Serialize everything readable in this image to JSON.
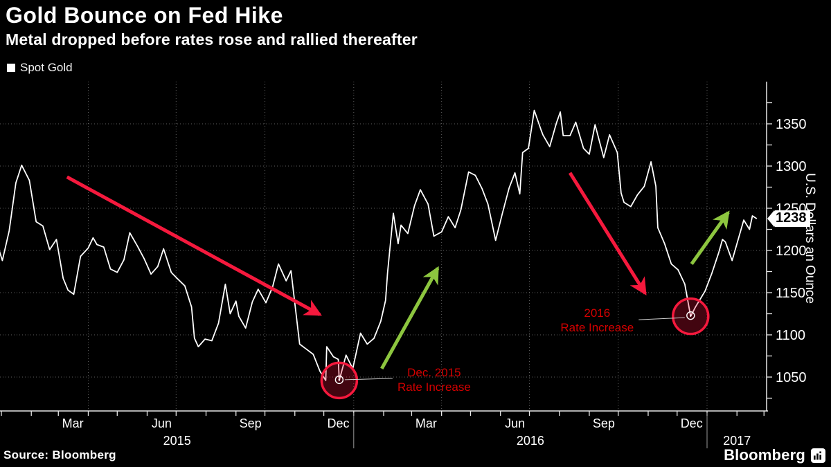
{
  "header": {
    "title": "Gold Bounce on Fed Hike",
    "subtitle": "Metal dropped before rates rose and rallied thereafter"
  },
  "legend": {
    "label": "Spot Gold"
  },
  "footer": {
    "source": "Source: Bloomberg",
    "brand": "Bloomberg"
  },
  "colors": {
    "background": "#000000",
    "line": "#ffffff",
    "grid": "#606060",
    "axis": "#e8e8e8",
    "annotation_red": "#f5193d",
    "annotation_text_red": "#d40000",
    "annotation_green": "#8dc63f",
    "callout": "#cfcfcf"
  },
  "annotations": {
    "events": [
      {
        "lines": [
          "Dec. 2015",
          "Rate Increase"
        ],
        "date": "2015-12-17",
        "value": 1046,
        "side": "right"
      },
      {
        "lines": [
          "2016",
          "Rate Increase"
        ],
        "date": "2016-12-15",
        "value": 1122,
        "side": "left"
      }
    ],
    "arrows": [
      {
        "color": "#f5193d",
        "from": {
          "date": "2015-03-10",
          "value": 1287
        },
        "to": {
          "date": "2015-11-27",
          "value": 1124
        }
      },
      {
        "color": "#8dc63f",
        "from": {
          "date": "2016-01-30",
          "value": 1060
        },
        "to": {
          "date": "2016-03-28",
          "value": 1179
        }
      },
      {
        "color": "#f5193d",
        "from": {
          "date": "2016-08-12",
          "value": 1292
        },
        "to": {
          "date": "2016-10-29",
          "value": 1149
        }
      },
      {
        "color": "#8dc63f",
        "from": {
          "date": "2016-12-16",
          "value": 1184
        },
        "to": {
          "date": "2017-01-23",
          "value": 1245
        }
      }
    ]
  },
  "chart_data": {
    "type": "line",
    "title": "Gold Bounce on Fed Hike",
    "subtitle": "Metal dropped before rates rose and rallied thereafter",
    "xlabel": "",
    "ylabel": "U.S. Dollars an Ounce",
    "legend_position": "top-left",
    "grid": true,
    "last_price": 1238,
    "last_price_label": "1238",
    "ylim": [
      1010,
      1400
    ],
    "xlim": [
      "2014-12-29",
      "2017-03-05"
    ],
    "y_ticks": [
      1050,
      1100,
      1150,
      1200,
      1250,
      1300,
      1350
    ],
    "y_minor_tick_step": 25,
    "grid_v_dates": [
      "2015-04-01",
      "2015-07-01",
      "2015-10-01",
      "2016-01-01",
      "2016-04-01",
      "2016-07-01",
      "2016-10-01",
      "2017-01-01"
    ],
    "year_dividers": [
      "2016-01-01",
      "2017-01-01"
    ],
    "x_month_labels": [
      {
        "label": "Mar",
        "date": "2015-03-16"
      },
      {
        "label": "Jun",
        "date": "2015-06-16"
      },
      {
        "label": "Sep",
        "date": "2015-09-16"
      },
      {
        "label": "Dec",
        "date": "2015-12-16"
      },
      {
        "label": "Mar",
        "date": "2016-03-16"
      },
      {
        "label": "Jun",
        "date": "2016-06-16"
      },
      {
        "label": "Sep",
        "date": "2016-09-16"
      },
      {
        "label": "Dec",
        "date": "2016-12-16"
      }
    ],
    "x_year_labels": [
      {
        "label": "2015",
        "center_date": "2015-07-02"
      },
      {
        "label": "2016",
        "center_date": "2016-07-02"
      },
      {
        "label": "2017",
        "center_date": "2017-02-01"
      }
    ],
    "series": [
      {
        "name": "Spot Gold",
        "color": "#ffffff",
        "points": [
          [
            "2014-12-30",
            1199
          ],
          [
            "2015-01-02",
            1188
          ],
          [
            "2015-01-09",
            1223
          ],
          [
            "2015-01-16",
            1280
          ],
          [
            "2015-01-22",
            1301
          ],
          [
            "2015-01-30",
            1283
          ],
          [
            "2015-02-06",
            1234
          ],
          [
            "2015-02-13",
            1229
          ],
          [
            "2015-02-20",
            1201
          ],
          [
            "2015-02-27",
            1213
          ],
          [
            "2015-03-06",
            1167
          ],
          [
            "2015-03-11",
            1153
          ],
          [
            "2015-03-17",
            1148
          ],
          [
            "2015-03-24",
            1193
          ],
          [
            "2015-04-01",
            1203
          ],
          [
            "2015-04-06",
            1215
          ],
          [
            "2015-04-10",
            1207
          ],
          [
            "2015-04-17",
            1204
          ],
          [
            "2015-04-24",
            1178
          ],
          [
            "2015-05-01",
            1174
          ],
          [
            "2015-05-08",
            1189
          ],
          [
            "2015-05-14",
            1221
          ],
          [
            "2015-05-22",
            1205
          ],
          [
            "2015-05-29",
            1190
          ],
          [
            "2015-06-05",
            1172
          ],
          [
            "2015-06-12",
            1181
          ],
          [
            "2015-06-18",
            1202
          ],
          [
            "2015-06-26",
            1174
          ],
          [
            "2015-07-02",
            1167
          ],
          [
            "2015-07-10",
            1158
          ],
          [
            "2015-07-17",
            1133
          ],
          [
            "2015-07-20",
            1096
          ],
          [
            "2015-07-24",
            1086
          ],
          [
            "2015-07-31",
            1095
          ],
          [
            "2015-08-07",
            1093
          ],
          [
            "2015-08-14",
            1114
          ],
          [
            "2015-08-21",
            1160
          ],
          [
            "2015-08-26",
            1125
          ],
          [
            "2015-09-01",
            1140
          ],
          [
            "2015-09-04",
            1122
          ],
          [
            "2015-09-11",
            1108
          ],
          [
            "2015-09-18",
            1139
          ],
          [
            "2015-09-24",
            1154
          ],
          [
            "2015-10-02",
            1138
          ],
          [
            "2015-10-09",
            1157
          ],
          [
            "2015-10-15",
            1184
          ],
          [
            "2015-10-23",
            1164
          ],
          [
            "2015-10-28",
            1176
          ],
          [
            "2015-11-06",
            1089
          ],
          [
            "2015-11-13",
            1083
          ],
          [
            "2015-11-20",
            1077
          ],
          [
            "2015-11-27",
            1057
          ],
          [
            "2015-12-03",
            1046
          ],
          [
            "2015-12-04",
            1086
          ],
          [
            "2015-12-11",
            1074
          ],
          [
            "2015-12-16",
            1071
          ],
          [
            "2015-12-17",
            1046
          ],
          [
            "2015-12-24",
            1076
          ],
          [
            "2015-12-31",
            1060
          ],
          [
            "2016-01-08",
            1102
          ],
          [
            "2016-01-15",
            1089
          ],
          [
            "2016-01-22",
            1096
          ],
          [
            "2016-01-29",
            1116
          ],
          [
            "2016-02-03",
            1141
          ],
          [
            "2016-02-05",
            1173
          ],
          [
            "2016-02-11",
            1244
          ],
          [
            "2016-02-16",
            1208
          ],
          [
            "2016-02-19",
            1230
          ],
          [
            "2016-02-26",
            1220
          ],
          [
            "2016-03-04",
            1253
          ],
          [
            "2016-03-10",
            1272
          ],
          [
            "2016-03-18",
            1255
          ],
          [
            "2016-03-24",
            1217
          ],
          [
            "2016-04-01",
            1222
          ],
          [
            "2016-04-08",
            1240
          ],
          [
            "2016-04-15",
            1227
          ],
          [
            "2016-04-21",
            1248
          ],
          [
            "2016-04-29",
            1293
          ],
          [
            "2016-05-06",
            1289
          ],
          [
            "2016-05-13",
            1273
          ],
          [
            "2016-05-19",
            1255
          ],
          [
            "2016-05-27",
            1212
          ],
          [
            "2016-06-03",
            1244
          ],
          [
            "2016-06-10",
            1274
          ],
          [
            "2016-06-16",
            1292
          ],
          [
            "2016-06-21",
            1267
          ],
          [
            "2016-06-24",
            1316
          ],
          [
            "2016-06-30",
            1321
          ],
          [
            "2016-07-06",
            1366
          ],
          [
            "2016-07-13",
            1343
          ],
          [
            "2016-07-15",
            1337
          ],
          [
            "2016-07-22",
            1323
          ],
          [
            "2016-07-29",
            1351
          ],
          [
            "2016-08-02",
            1364
          ],
          [
            "2016-08-05",
            1336
          ],
          [
            "2016-08-12",
            1336
          ],
          [
            "2016-08-18",
            1352
          ],
          [
            "2016-08-26",
            1321
          ],
          [
            "2016-09-01",
            1314
          ],
          [
            "2016-09-07",
            1349
          ],
          [
            "2016-09-16",
            1310
          ],
          [
            "2016-09-22",
            1337
          ],
          [
            "2016-09-30",
            1316
          ],
          [
            "2016-10-04",
            1268
          ],
          [
            "2016-10-07",
            1257
          ],
          [
            "2016-10-14",
            1252
          ],
          [
            "2016-10-21",
            1266
          ],
          [
            "2016-10-28",
            1276
          ],
          [
            "2016-11-04",
            1305
          ],
          [
            "2016-11-09",
            1276
          ],
          [
            "2016-11-11",
            1227
          ],
          [
            "2016-11-18",
            1208
          ],
          [
            "2016-11-25",
            1184
          ],
          [
            "2016-12-02",
            1177
          ],
          [
            "2016-12-09",
            1160
          ],
          [
            "2016-12-15",
            1122
          ],
          [
            "2016-12-20",
            1133
          ],
          [
            "2016-12-30",
            1152
          ],
          [
            "2017-01-06",
            1173
          ],
          [
            "2017-01-13",
            1197
          ],
          [
            "2017-01-17",
            1213
          ],
          [
            "2017-01-20",
            1210
          ],
          [
            "2017-01-27",
            1188
          ],
          [
            "2017-02-03",
            1216
          ],
          [
            "2017-02-08",
            1236
          ],
          [
            "2017-02-14",
            1225
          ],
          [
            "2017-02-17",
            1241
          ],
          [
            "2017-02-21",
            1238
          ]
        ]
      }
    ]
  }
}
